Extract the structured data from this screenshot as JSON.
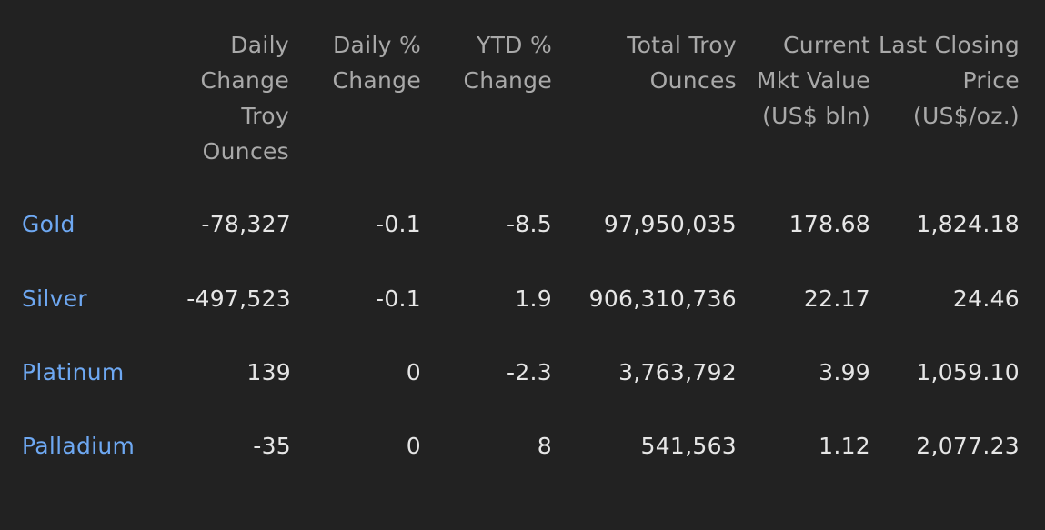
{
  "table": {
    "headers": [
      "",
      "Daily Change Troy Ounces",
      "Daily % Change",
      "YTD % Change",
      "Total Troy Ounces",
      "Current Mkt Value (US$ bln)",
      "Last Closing Price (US$/oz.)"
    ],
    "rows": [
      {
        "metal": "Gold",
        "daily_change_oz": "-78,327",
        "daily_pct": "-0.1",
        "ytd_pct": "-8.5",
        "total_oz": "97,950,035",
        "mkt_value": "178.68",
        "last_price": "1,824.18"
      },
      {
        "metal": "Silver",
        "daily_change_oz": "-497,523",
        "daily_pct": "-0.1",
        "ytd_pct": "1.9",
        "total_oz": "906,310,736",
        "mkt_value": "22.17",
        "last_price": "24.46"
      },
      {
        "metal": "Platinum",
        "daily_change_oz": "139",
        "daily_pct": "0",
        "ytd_pct": "-2.3",
        "total_oz": "3,763,792",
        "mkt_value": "3.99",
        "last_price": "1,059.10"
      },
      {
        "metal": "Palladium",
        "daily_change_oz": "-35",
        "daily_pct": "0",
        "ytd_pct": "8",
        "total_oz": "541,563",
        "mkt_value": "1.12",
        "last_price": "2,077.23"
      }
    ]
  },
  "colors": {
    "background": "#222222",
    "header_text": "#a9a9a9",
    "value_text": "#e6e6e6",
    "link_text": "#6ea8f2"
  }
}
